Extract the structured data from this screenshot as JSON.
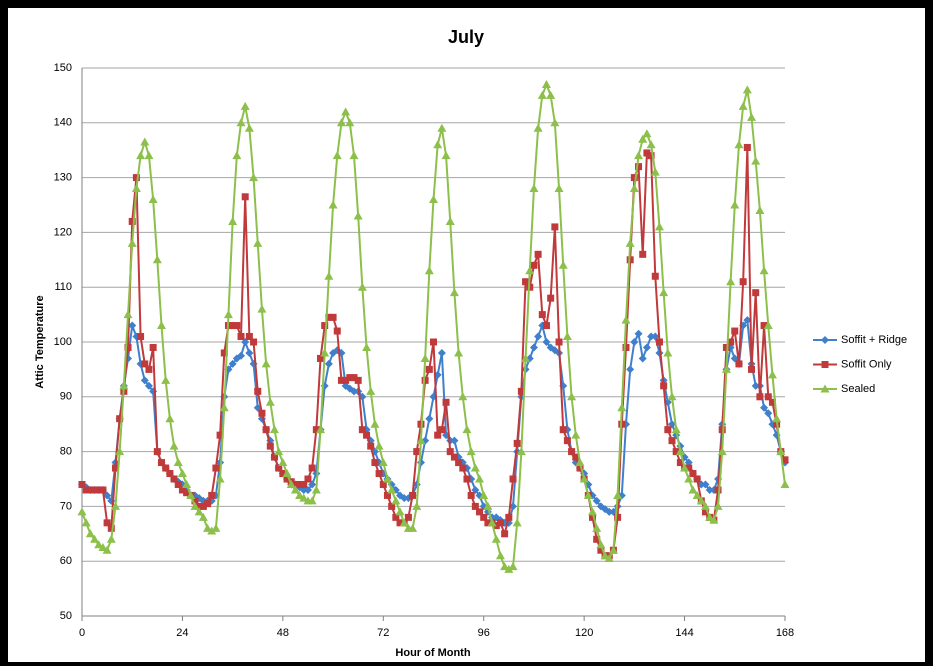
{
  "chart_data": {
    "type": "line",
    "title": "July",
    "x_label": "Hour of Month",
    "y_label": "Attic Temperature",
    "x": [
      0,
      1,
      2,
      3,
      4,
      5,
      6,
      7,
      8,
      9,
      10,
      11,
      12,
      13,
      14,
      15,
      16,
      17,
      18,
      19,
      20,
      21,
      22,
      23,
      24,
      25,
      26,
      27,
      28,
      29,
      30,
      31,
      32,
      33,
      34,
      35,
      36,
      37,
      38,
      39,
      40,
      41,
      42,
      43,
      44,
      45,
      46,
      47,
      48,
      49,
      50,
      51,
      52,
      53,
      54,
      55,
      56,
      57,
      58,
      59,
      60,
      61,
      62,
      63,
      64,
      65,
      66,
      67,
      68,
      69,
      70,
      71,
      72,
      73,
      74,
      75,
      76,
      77,
      78,
      79,
      80,
      81,
      82,
      83,
      84,
      85,
      86,
      87,
      88,
      89,
      90,
      91,
      92,
      93,
      94,
      95,
      96,
      97,
      98,
      99,
      100,
      101,
      102,
      103,
      104,
      105,
      106,
      107,
      108,
      109,
      110,
      111,
      112,
      113,
      114,
      115,
      116,
      117,
      118,
      119,
      120,
      121,
      122,
      123,
      124,
      125,
      126,
      127,
      128,
      129,
      130,
      131,
      132,
      133,
      134,
      135,
      136,
      137,
      138,
      139,
      140,
      141,
      142,
      143,
      144,
      145,
      146,
      147,
      148,
      149,
      150,
      151,
      152,
      153,
      154,
      155,
      156,
      157,
      158,
      159,
      160,
      161,
      162,
      163,
      164,
      165,
      166,
      167,
      168
    ],
    "series": [
      {
        "name": "Soffit + Ridge",
        "color": "#3f7fcc",
        "marker": "diamond",
        "values": [
          74,
          73.5,
          73,
          73,
          73,
          73,
          72,
          71,
          78,
          86,
          92,
          97,
          103,
          101,
          96,
          93,
          92,
          91,
          80,
          78,
          77,
          76,
          75,
          74.5,
          74,
          73,
          72,
          72,
          71.5,
          71,
          71,
          71,
          72,
          78,
          90,
          95,
          96,
          97,
          97.5,
          100,
          98,
          96,
          88,
          86,
          84,
          82,
          79,
          77,
          76,
          75,
          74,
          74,
          73.5,
          73,
          73,
          74,
          76,
          84,
          92,
          96,
          98,
          98.5,
          98,
          92,
          91.5,
          91,
          91,
          90,
          84,
          82,
          80,
          78,
          76,
          75,
          74,
          73,
          72,
          71.5,
          71.5,
          72,
          74,
          78,
          82,
          86,
          90,
          94,
          98,
          83,
          82,
          82,
          79,
          78,
          77,
          75,
          73,
          72,
          70,
          69,
          68,
          68,
          67.5,
          67,
          67,
          70,
          80,
          90,
          95,
          97,
          99,
          101,
          103,
          100,
          99,
          98.5,
          98,
          92,
          84,
          80,
          78,
          77,
          76,
          74,
          72,
          71,
          70,
          69.5,
          69,
          69,
          70,
          72,
          85,
          95,
          100,
          101.5,
          97,
          99,
          101,
          101,
          98,
          93,
          89,
          85,
          83,
          81,
          79,
          78,
          76,
          75,
          74,
          74,
          73,
          73,
          75,
          85,
          95,
          99,
          97,
          96,
          103,
          104,
          96,
          92,
          92,
          88,
          87,
          85,
          83,
          80,
          78
        ]
      },
      {
        "name": "Soffit Only",
        "color": "#c0393b",
        "marker": "square",
        "values": [
          74,
          73,
          73,
          73,
          73,
          73,
          67,
          66,
          77,
          86,
          91,
          99,
          122,
          130,
          101,
          96,
          95,
          99,
          80,
          78,
          77,
          76,
          75,
          74,
          73,
          72.5,
          72,
          71,
          70,
          70,
          70.5,
          72,
          77,
          83,
          98,
          103,
          103,
          103,
          101,
          126.5,
          101,
          100,
          91,
          87,
          84,
          81,
          79,
          77,
          76,
          75,
          74.5,
          74,
          74,
          74,
          75,
          77,
          84,
          97,
          103,
          104.5,
          104.5,
          102,
          93,
          93,
          93.5,
          93.5,
          93,
          84,
          83,
          81,
          78,
          76,
          74,
          72,
          70,
          68,
          67,
          67,
          68,
          72,
          80,
          85,
          93,
          95,
          100,
          83,
          84,
          89,
          80,
          79,
          78,
          77,
          75,
          72,
          70,
          69,
          68,
          67,
          67,
          66.5,
          67,
          65,
          68,
          75,
          81.5,
          91,
          111,
          110,
          114,
          116,
          105,
          103,
          108,
          121,
          100,
          84,
          82,
          80,
          79,
          77,
          75,
          72,
          68,
          64,
          62,
          61,
          61,
          62,
          68,
          85,
          99,
          115,
          130,
          132,
          116,
          134.5,
          134,
          112,
          100,
          92,
          84,
          82,
          80,
          78,
          77,
          77,
          76,
          75,
          71,
          69,
          68,
          67.5,
          73,
          84,
          99,
          100,
          102,
          96,
          111,
          135.5,
          95,
          109,
          90,
          103,
          90,
          89,
          85,
          80,
          78.5
        ]
      },
      {
        "name": "Sealed",
        "color": "#8cc04a",
        "marker": "triangle",
        "values": [
          69,
          67,
          65,
          64,
          63,
          62.5,
          62,
          64,
          70,
          80,
          92,
          105,
          118,
          128,
          134,
          136.5,
          134,
          126,
          115,
          103,
          93,
          86,
          81,
          78,
          76,
          74,
          72,
          70,
          69,
          68,
          66,
          65.5,
          66,
          75,
          88,
          105,
          122,
          134,
          140,
          143,
          139,
          130,
          118,
          106,
          96,
          89,
          84,
          80,
          78,
          76,
          74,
          73,
          72,
          71.5,
          71,
          71,
          73,
          84,
          98,
          112,
          125,
          134,
          140,
          142,
          140,
          134,
          123,
          110,
          99,
          91,
          85,
          81,
          78,
          75,
          73,
          71,
          69,
          67,
          66,
          66,
          70,
          82,
          97,
          113,
          126,
          136,
          139,
          134,
          122,
          109,
          98,
          90,
          84,
          80,
          77,
          75,
          72,
          70,
          67,
          64,
          61,
          59,
          58.5,
          59,
          67,
          80,
          97,
          113,
          128,
          139,
          145,
          147,
          145,
          140,
          128,
          114,
          101,
          90,
          83,
          78,
          75,
          72,
          69,
          66,
          63,
          61,
          60.5,
          62,
          72,
          88,
          104,
          118,
          128,
          134,
          137,
          138,
          136,
          131,
          121,
          109,
          98,
          90,
          84,
          80,
          77,
          75,
          73,
          72,
          71,
          70,
          68,
          67.5,
          70,
          80,
          95,
          111,
          125,
          136,
          143,
          146,
          141,
          133,
          124,
          113,
          103,
          94,
          86,
          80,
          74
        ]
      }
    ],
    "xlim": [
      0,
      168
    ],
    "xticks": [
      0,
      24,
      48,
      72,
      96,
      120,
      144,
      168
    ],
    "ylim": [
      50,
      150
    ],
    "yticks": [
      50,
      60,
      70,
      80,
      90,
      100,
      110,
      120,
      130,
      140,
      150
    ],
    "grid": true,
    "legend": "right"
  }
}
